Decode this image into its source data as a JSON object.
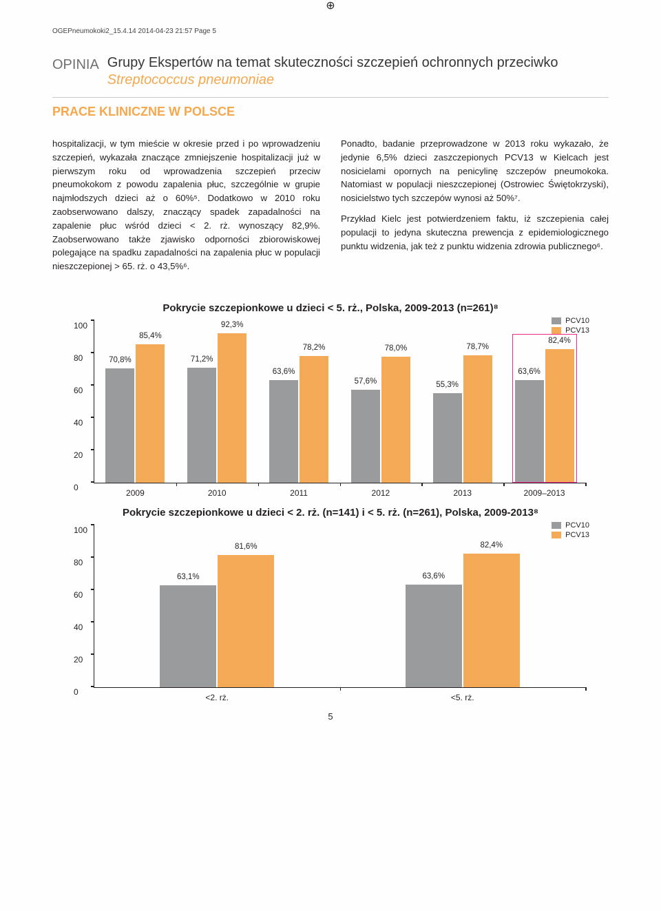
{
  "meta": {
    "header_text": "OGEPneumokoki2_15.4.14  2014-04-23  21:57  Page 5",
    "page_number": "5"
  },
  "opinia": {
    "label": "OPINIA",
    "line1": "Grupy Ekspertów na temat skuteczności szczepień ochronnych przeciwko",
    "line2": "Streptococcus pneumoniae"
  },
  "section_title": "PRACE KLINICZNE W POLSCE",
  "body": {
    "left": "hospitalizacji, w tym mieście w okresie przed i po wprowadzeniu szczepień, wykazała znaczące zmniejszenie hospitalizacji już w pierwszym roku od wprowadzenia szczepień przeciw pneumokokom z powodu zapalenia płuc, szczególnie w grupie najmłodszych dzieci aż o 60%⁵. Dodatkowo w 2010 roku zaobserwowano dalszy, znaczący spadek zapadalności na zapalenie płuc wśród dzieci < 2. rż. wynoszący 82,9%. Zaobserwowano także zjawisko odporności zbiorowiskowej polegające na spadku zapadalności na zapalenia płuc w populacji nieszczepionej > 65. rż. o 43,5%⁶.",
    "right_p1": "Ponadto, badanie przeprowadzone w 2013 roku wykazało, że jedynie 6,5% dzieci zaszczepionych PCV13 w Kielcach jest nosicielami opornych na penicylinę szczepów pneumokoka. Natomiast w populacji nieszczepionej (Ostrowiec Świętokrzyski), nosicielstwo tych szczepów wynosi aż 50%⁷.",
    "right_p2": "Przykład Kielc jest potwierdzeniem faktu, iż szczepienia całej populacji to jedyna skuteczna prewencja z epidemiologicznego punktu widzenia, jak też z punktu widzenia zdrowia publicznego⁶."
  },
  "chart1": {
    "title": "Pokrycie szczepionkowe u dzieci < 5. rż., Polska, 2009-2013 (n=261)⁸",
    "legend": [
      {
        "label": "PCV10",
        "color": "#9a9b9d"
      },
      {
        "label": "PCV13",
        "color": "#f5aa58"
      }
    ],
    "ymax": 100,
    "yticks": [
      0,
      20,
      40,
      60,
      80,
      100
    ],
    "axis_color": "#231f20",
    "background": "#ffffff",
    "bar_label_fontsize": 11.5,
    "tick_fontsize": 12,
    "groups": [
      {
        "x": "2009",
        "bars": [
          {
            "v": 70.8,
            "label": "70,8%",
            "color": "#9a9b9d"
          },
          {
            "v": 85.4,
            "label": "85,4%",
            "color": "#f5aa58"
          }
        ]
      },
      {
        "x": "2010",
        "bars": [
          {
            "v": 71.2,
            "label": "71,2%",
            "color": "#9a9b9d"
          },
          {
            "v": 92.3,
            "label": "92,3%",
            "color": "#f5aa58"
          }
        ]
      },
      {
        "x": "2011",
        "bars": [
          {
            "v": 63.6,
            "label": "63,6%",
            "color": "#9a9b9d"
          },
          {
            "v": 78.2,
            "label": "78,2%",
            "color": "#f5aa58"
          }
        ]
      },
      {
        "x": "2012",
        "bars": [
          {
            "v": 57.6,
            "label": "57,6%",
            "color": "#9a9b9d"
          },
          {
            "v": 78.0,
            "label": "78,0%",
            "color": "#f5aa58"
          }
        ]
      },
      {
        "x": "2013",
        "bars": [
          {
            "v": 55.3,
            "label": "55,3%",
            "color": "#9a9b9d"
          },
          {
            "v": 78.7,
            "label": "78,7%",
            "color": "#f5aa58"
          }
        ]
      },
      {
        "x": "2009–2013",
        "bars": [
          {
            "v": 63.6,
            "label": "63,6%",
            "color": "#9a9b9d"
          },
          {
            "v": 82.4,
            "label": "82,4%",
            "color": "#f5aa58"
          }
        ],
        "outline": "#ec2b8b"
      }
    ]
  },
  "chart2": {
    "title": "Pokrycie szczepionkowe u dzieci < 2. rż. (n=141) i < 5. rż. (n=261), Polska, 2009-2013⁸",
    "legend": [
      {
        "label": "PCV10",
        "color": "#9a9b9d"
      },
      {
        "label": "PCV13",
        "color": "#f5aa58"
      }
    ],
    "ymax": 100,
    "yticks": [
      0,
      20,
      40,
      60,
      80,
      100
    ],
    "axis_color": "#231f20",
    "background": "#ffffff",
    "groups": [
      {
        "x": "<2. rż.",
        "bars": [
          {
            "v": 63.1,
            "label": "63,1%",
            "color": "#9a9b9d",
            "wide": true
          },
          {
            "v": 81.6,
            "label": "81,6%",
            "color": "#f5aa58",
            "wide": true
          }
        ]
      },
      {
        "x": "<5. rż.",
        "bars": [
          {
            "v": 63.6,
            "label": "63,6%",
            "color": "#9a9b9d",
            "wide": true
          },
          {
            "v": 82.4,
            "label": "82,4%",
            "color": "#f5aa58",
            "wide": true
          }
        ]
      }
    ]
  }
}
